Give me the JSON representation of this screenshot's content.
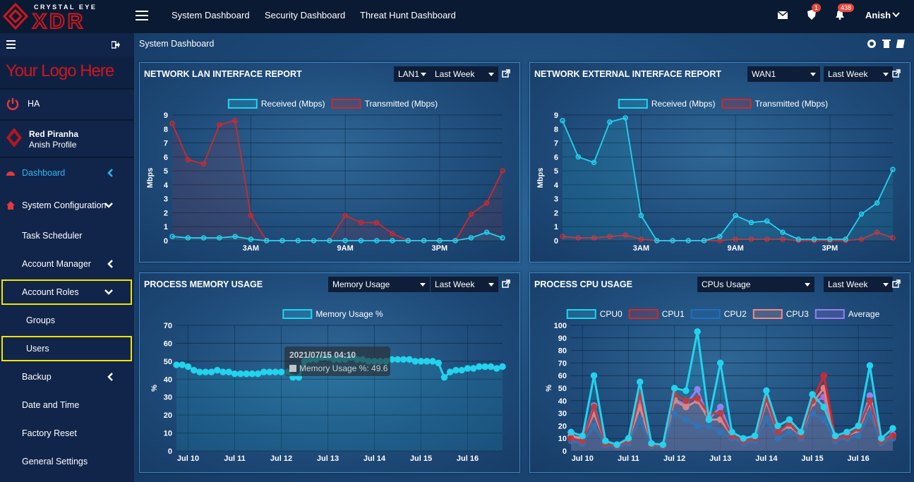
{
  "nav": {
    "brand": "CRYSTAL EYE",
    "brand_mark": "XDR",
    "links": [
      "System Dashboard",
      "Security Dashboard",
      "Threat Hunt Dashboard"
    ],
    "badges": [
      1,
      438
    ],
    "user": "Anish"
  },
  "sidebar": {
    "logo": "Your Logo Here",
    "ha": "HA",
    "org": "Red Piranha",
    "profile": "Anish Profile",
    "menu": [
      "Dashboard",
      "System Configuration",
      "Task Scheduler",
      "Account Manager",
      "Account Roles",
      "Groups",
      "Users",
      "Backup",
      "Date and Time",
      "Factory Reset",
      "General Settings"
    ]
  },
  "breadcrumb": "System Dashboard",
  "chart_data": [
    {
      "type": "line",
      "title": "NETWORK LAN INTERFACE REPORT",
      "controls": [
        "LAN1",
        "Last Week"
      ],
      "y_label": "Mbps",
      "fill": true,
      "grid": true,
      "categories": [
        null,
        null,
        null,
        null,
        null,
        "3AM",
        null,
        null,
        null,
        null,
        null,
        "9AM",
        null,
        null,
        null,
        null,
        null,
        "3PM",
        null,
        null,
        null,
        null
      ],
      "ylim": [
        0,
        9
      ],
      "yticks": [
        0,
        1,
        2,
        3,
        4,
        5,
        6,
        7,
        8,
        9
      ],
      "series": [
        {
          "name": "Received (Mbps)",
          "color": "#22d3ee",
          "values": [
            0.3,
            0.2,
            0.2,
            0.2,
            0.3,
            0.1,
            0,
            0,
            0,
            0,
            0,
            0,
            0,
            0,
            0,
            0,
            0,
            0,
            0,
            0.2,
            0.6,
            0.2
          ]
        },
        {
          "name": "Transmitted (Mbps)",
          "color": "#d0282e",
          "values": [
            8.4,
            5.8,
            5.5,
            8.3,
            8.6,
            1.8,
            0,
            0,
            0,
            0,
            0,
            1.8,
            1.3,
            1.3,
            0.5,
            0,
            0,
            0,
            0,
            1.9,
            2.7,
            5.0
          ]
        }
      ]
    },
    {
      "type": "line",
      "title": "NETWORK EXTERNAL INTERFACE REPORT",
      "controls": [
        "WAN1",
        "Last Week"
      ],
      "y_label": "Mbps",
      "fill": true,
      "grid": true,
      "categories": [
        null,
        null,
        null,
        null,
        null,
        "3AM",
        null,
        null,
        null,
        null,
        null,
        "9AM",
        null,
        null,
        null,
        null,
        null,
        "3PM",
        null,
        null,
        null,
        null
      ],
      "ylim": [
        0,
        9
      ],
      "yticks": [
        0,
        1,
        2,
        3,
        4,
        5,
        6,
        7,
        8,
        9
      ],
      "series": [
        {
          "name": "Received (Mbps)",
          "color": "#22d3ee",
          "values": [
            8.6,
            6.0,
            5.6,
            8.5,
            8.8,
            1.8,
            0,
            0,
            0,
            0,
            0.3,
            1.8,
            1.3,
            1.4,
            0.6,
            0.1,
            0.1,
            0.1,
            0.1,
            1.9,
            2.7,
            5.1
          ]
        },
        {
          "name": "Transmitted (Mbps)",
          "color": "#d0282e",
          "values": [
            0.3,
            0.2,
            0.2,
            0.3,
            0.4,
            0.1,
            0,
            0,
            0,
            0,
            0,
            0.1,
            0.1,
            0.1,
            0.1,
            0,
            0,
            0,
            0,
            0.1,
            0.6,
            0.2
          ]
        }
      ]
    },
    {
      "type": "line",
      "title": "PROCESS MEMORY USAGE",
      "controls": [
        "Memory Usage",
        "Last Week"
      ],
      "y_label": "%",
      "fill": true,
      "grid": true,
      "categories": [
        null,
        null,
        "Jul 10",
        null,
        null,
        null,
        null,
        null,
        null,
        null,
        "Jul 11",
        null,
        null,
        null,
        null,
        null,
        null,
        null,
        "Jul 12",
        null,
        null,
        null,
        null,
        null,
        null,
        null,
        "Jul 13",
        null,
        null,
        null,
        null,
        null,
        null,
        null,
        "Jul 14",
        null,
        null,
        null,
        null,
        null,
        null,
        null,
        "Jul 15",
        null,
        null,
        null,
        null,
        null,
        null,
        null,
        "Jul 16",
        null,
        null,
        null,
        null,
        null,
        null
      ],
      "ylim": [
        0,
        70
      ],
      "yticks": [
        0,
        10,
        20,
        30,
        40,
        50,
        60,
        70
      ],
      "tooltip": {
        "title": "2021/07/15 04:10",
        "text": "Memory Usage %: 49.6"
      },
      "series": [
        {
          "name": "Memory Usage %",
          "color": "#22d3ee",
          "values": [
            48,
            48,
            47,
            45,
            44,
            44,
            44,
            45,
            44,
            44,
            43,
            43,
            43,
            43,
            43,
            44,
            44,
            44,
            44,
            44,
            41,
            41,
            50,
            51,
            51,
            52,
            52,
            51,
            51,
            51,
            52,
            51,
            51,
            50,
            50,
            50,
            50,
            51,
            51,
            51,
            51,
            50,
            50,
            50,
            50,
            49,
            41,
            44,
            45,
            45,
            46,
            46,
            47,
            47,
            47,
            46,
            47
          ]
        }
      ]
    },
    {
      "type": "line",
      "title": "PROCESS CPU USAGE",
      "controls": [
        "CPUs Usage",
        "Last Week"
      ],
      "y_label": "%",
      "fill": true,
      "grid": true,
      "categories": [
        null,
        "Jul 10",
        null,
        null,
        null,
        "Jul 11",
        null,
        null,
        null,
        "Jul 12",
        null,
        null,
        null,
        "Jul 13",
        null,
        null,
        null,
        "Jul 14",
        null,
        null,
        null,
        "Jul 15",
        null,
        null,
        null,
        "Jul 16",
        null,
        null,
        null
      ],
      "ylim": [
        0,
        100
      ],
      "yticks": [
        0,
        10,
        20,
        30,
        40,
        50,
        60,
        70,
        80,
        90,
        100
      ],
      "series": [
        {
          "name": "CPU0",
          "color": "#22d3ee",
          "values": [
            15,
            12,
            60,
            8,
            5,
            10,
            55,
            6,
            5,
            50,
            48,
            95,
            25,
            70,
            15,
            10,
            12,
            48,
            20,
            25,
            15,
            45,
            35,
            12,
            15,
            20,
            68,
            10,
            18
          ]
        },
        {
          "name": "CPU1",
          "color": "#d0282e",
          "values": [
            10,
            8,
            35,
            6,
            4,
            8,
            45,
            5,
            4,
            45,
            40,
            42,
            30,
            30,
            12,
            8,
            10,
            42,
            15,
            22,
            12,
            40,
            60,
            10,
            12,
            18,
            40,
            8,
            12
          ]
        },
        {
          "name": "CPU2",
          "color": "#1f6fc0",
          "values": [
            8,
            6,
            20,
            5,
            3,
            6,
            25,
            4,
            3,
            30,
            25,
            20,
            20,
            15,
            10,
            6,
            8,
            25,
            10,
            15,
            10,
            30,
            25,
            8,
            10,
            12,
            30,
            6,
            10
          ]
        },
        {
          "name": "CPU3",
          "color": "#f08a8a",
          "values": [
            12,
            10,
            30,
            7,
            4,
            9,
            35,
            5,
            4,
            40,
            35,
            40,
            25,
            25,
            12,
            8,
            10,
            40,
            15,
            20,
            12,
            38,
            50,
            10,
            12,
            16,
            38,
            8,
            12
          ]
        },
        {
          "name": "Average",
          "color": "#9b7bf0",
          "values": [
            11,
            9,
            36,
            6,
            4,
            8,
            40,
            5,
            4,
            41,
            37,
            49,
            25,
            35,
            12,
            8,
            10,
            39,
            15,
            21,
            12,
            38,
            43,
            10,
            12,
            17,
            44,
            8,
            13
          ]
        }
      ]
    }
  ]
}
